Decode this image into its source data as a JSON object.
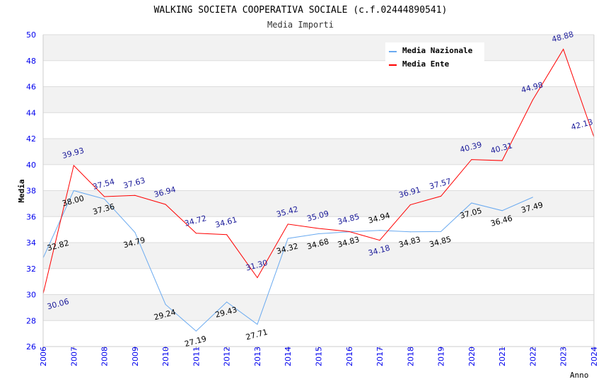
{
  "chart_data": {
    "type": "line",
    "title": "WALKING SOCIETA COOPERATIVA SOCIALE (c.f.02444890541)",
    "subtitle": "Media Importi",
    "xlabel": "Anno",
    "ylabel": "Media",
    "ylim": [
      26,
      50
    ],
    "yticks": [
      26,
      28,
      30,
      32,
      34,
      36,
      38,
      40,
      42,
      44,
      46,
      48,
      50
    ],
    "x": [
      2006,
      2007,
      2008,
      2009,
      2010,
      2011,
      2012,
      2013,
      2014,
      2015,
      2016,
      2017,
      2018,
      2019,
      2020,
      2021,
      2022,
      2023,
      2024
    ],
    "legend_position": "top-right",
    "series": [
      {
        "name": "Media Nazionale",
        "color": "#6aaaf0",
        "label_color": "#000000",
        "values": [
          32.82,
          38.0,
          37.36,
          34.79,
          29.24,
          27.19,
          29.43,
          27.71,
          34.32,
          34.68,
          34.83,
          34.94,
          34.83,
          34.85,
          37.05,
          36.46,
          37.49,
          null,
          null
        ]
      },
      {
        "name": "Media Ente",
        "color": "#ff0000",
        "label_color": "#1a1a99",
        "values": [
          30.06,
          39.93,
          37.54,
          37.63,
          36.94,
          34.72,
          34.61,
          31.3,
          35.42,
          35.09,
          34.85,
          34.18,
          36.91,
          37.57,
          40.39,
          40.31,
          44.98,
          48.88,
          42.13
        ]
      }
    ]
  }
}
